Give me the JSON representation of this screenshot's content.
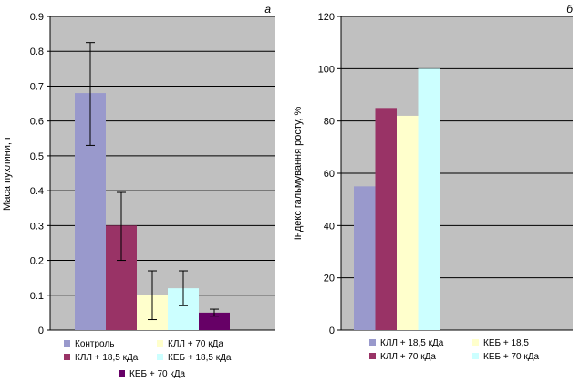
{
  "chart_data": [
    {
      "panel_label": "а",
      "type": "bar",
      "ylabel": "Маса пухлини, г",
      "ylim": [
        0,
        0.9
      ],
      "yticks": [
        "0",
        "0.1",
        "0.2",
        "0.3",
        "0.4",
        "0.5",
        "0.6",
        "0.7",
        "0.8",
        "0.9"
      ],
      "grid": true,
      "legend_position": "bottom",
      "series": [
        {
          "name": "Контроль",
          "value": 0.68,
          "err_low": 0.53,
          "err_high": 0.825,
          "color": "#9999cc"
        },
        {
          "name": "КЛЛ + 18,5 кДа",
          "value": 0.3,
          "err_low": 0.2,
          "err_high": 0.395,
          "color": "#993366"
        },
        {
          "name": "КЛЛ + 70 кДа",
          "value": 0.1,
          "err_low": 0.03,
          "err_high": 0.17,
          "color": "#ffffcc"
        },
        {
          "name": "КЕБ + 18,5 кДа",
          "value": 0.12,
          "err_low": 0.07,
          "err_high": 0.17,
          "color": "#ccffff"
        },
        {
          "name": "КЕБ + 70 кДа",
          "value": 0.05,
          "err_low": 0.04,
          "err_high": 0.06,
          "color": "#660066"
        }
      ]
    },
    {
      "panel_label": "б",
      "type": "bar",
      "ylabel": "Індекс гальмування росту, %",
      "ylim": [
        0,
        120
      ],
      "yticks": [
        "0",
        "20",
        "40",
        "60",
        "80",
        "100",
        "120"
      ],
      "grid": true,
      "legend_position": "bottom",
      "series": [
        {
          "name": "КЛЛ + 18,5 кДа",
          "value": 55,
          "color": "#9999cc"
        },
        {
          "name": "КЛЛ + 70 кДа",
          "value": 85,
          "color": "#993366"
        },
        {
          "name": "КЕБ + 18,5",
          "value": 82,
          "color": "#ffffcc"
        },
        {
          "name": "КЕБ + 70 кДа",
          "value": 100,
          "color": "#ccffff"
        }
      ]
    }
  ]
}
